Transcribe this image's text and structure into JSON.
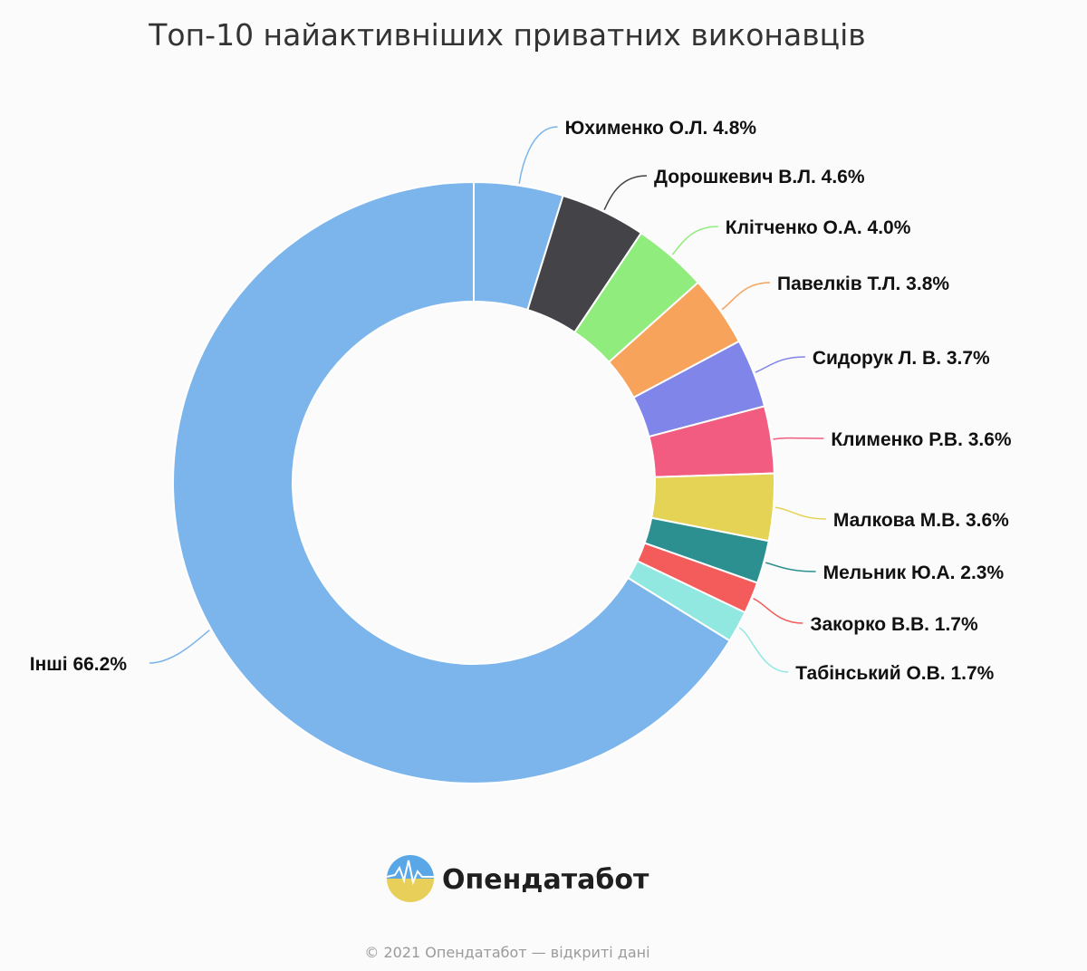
{
  "chart_data": {
    "type": "pie",
    "donut": true,
    "title": "Топ-10 найактивніших приватних виконавців",
    "slices": [
      {
        "label": "Юхименко О.Л.",
        "pct_text": "4.8%",
        "value": 4.8,
        "color": "#7cb5ec"
      },
      {
        "label": "Дорошкевич В.Л.",
        "pct_text": "4.6%",
        "value": 4.6,
        "color": "#434348"
      },
      {
        "label": "Клітченко О.А.",
        "pct_text": "4.0%",
        "value": 4.0,
        "color": "#90ed7d"
      },
      {
        "label": "Павелків Т.Л.",
        "pct_text": "3.8%",
        "value": 3.8,
        "color": "#f7a35c"
      },
      {
        "label": "Сидорук Л. В.",
        "pct_text": "3.7%",
        "value": 3.7,
        "color": "#8085e9"
      },
      {
        "label": "Клименко Р.В.",
        "pct_text": "3.6%",
        "value": 3.6,
        "color": "#f15c80"
      },
      {
        "label": "Малкова М.В.",
        "pct_text": "3.6%",
        "value": 3.6,
        "color": "#e4d354"
      },
      {
        "label": "Мельник Ю.А.",
        "pct_text": "2.3%",
        "value": 2.3,
        "color": "#2b908f"
      },
      {
        "label": "Закорко В.В.",
        "pct_text": "1.7%",
        "value": 1.7,
        "color": "#f45b5b"
      },
      {
        "label": "Табінський О.В.",
        "pct_text": "1.7%",
        "value": 1.7,
        "color": "#91e8e1"
      },
      {
        "label": "Інші",
        "pct_text": "66.2%",
        "value": 66.2,
        "color": "#7cb5ec"
      }
    ]
  },
  "branding": {
    "logo_text": "Опендатабот",
    "logo_colors": {
      "sky": "#5aa7e8",
      "sun": "#e8cf5a"
    }
  },
  "footer": {
    "copyright": "© 2021 Опендатабот — відкриті дані"
  }
}
